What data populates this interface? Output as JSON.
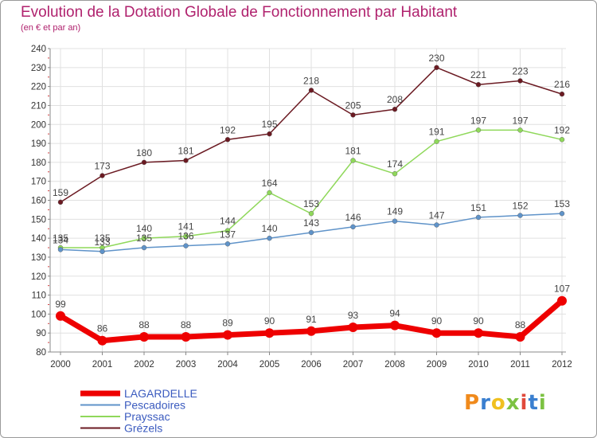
{
  "title": "Evolution de la Dotation Globale de Fonctionnement par Habitant",
  "subtitle": "(en € et par an)",
  "logo": {
    "text": "Proxiti",
    "colors": [
      "#f08a1c",
      "#3a7fd0",
      "#f0c020",
      "#7cc242",
      "#e04a3c",
      "#3a7fd0",
      "#7cc242"
    ]
  },
  "chart_data": {
    "type": "line",
    "x": [
      2000,
      2001,
      2002,
      2003,
      2004,
      2005,
      2006,
      2007,
      2008,
      2009,
      2010,
      2011,
      2012
    ],
    "ylim": [
      80,
      240
    ],
    "yticks": [
      80,
      90,
      100,
      110,
      120,
      130,
      140,
      150,
      160,
      170,
      180,
      190,
      200,
      210,
      220,
      230,
      240
    ],
    "grid": true,
    "legend_position": "bottom-left",
    "series": [
      {
        "name": "Grézels",
        "color": "#6b1a22",
        "values": [
          159,
          173,
          180,
          181,
          192,
          195,
          218,
          205,
          208,
          230,
          221,
          223,
          216
        ]
      },
      {
        "name": "Prayssac",
        "color": "#8fd85a",
        "values": [
          135,
          135,
          140,
          141,
          144,
          164,
          153,
          181,
          174,
          191,
          197,
          197,
          192
        ]
      },
      {
        "name": "Pescadoires",
        "color": "#5f93c9",
        "values": [
          134,
          133,
          135,
          136,
          137,
          140,
          143,
          146,
          149,
          147,
          151,
          152,
          153
        ]
      },
      {
        "name": "LAGARDELLE",
        "color": "#ee0000",
        "values": [
          99,
          86,
          88,
          88,
          89,
          90,
          91,
          93,
          94,
          90,
          90,
          88,
          107
        ]
      }
    ],
    "legend": [
      {
        "name": "LAGARDELLE",
        "color": "#ee0000"
      },
      {
        "name": "Pescadoires",
        "color": "#5f93c9"
      },
      {
        "name": "Prayssac",
        "color": "#8fd85a"
      },
      {
        "name": "Grézels",
        "color": "#6b1a22"
      }
    ]
  }
}
